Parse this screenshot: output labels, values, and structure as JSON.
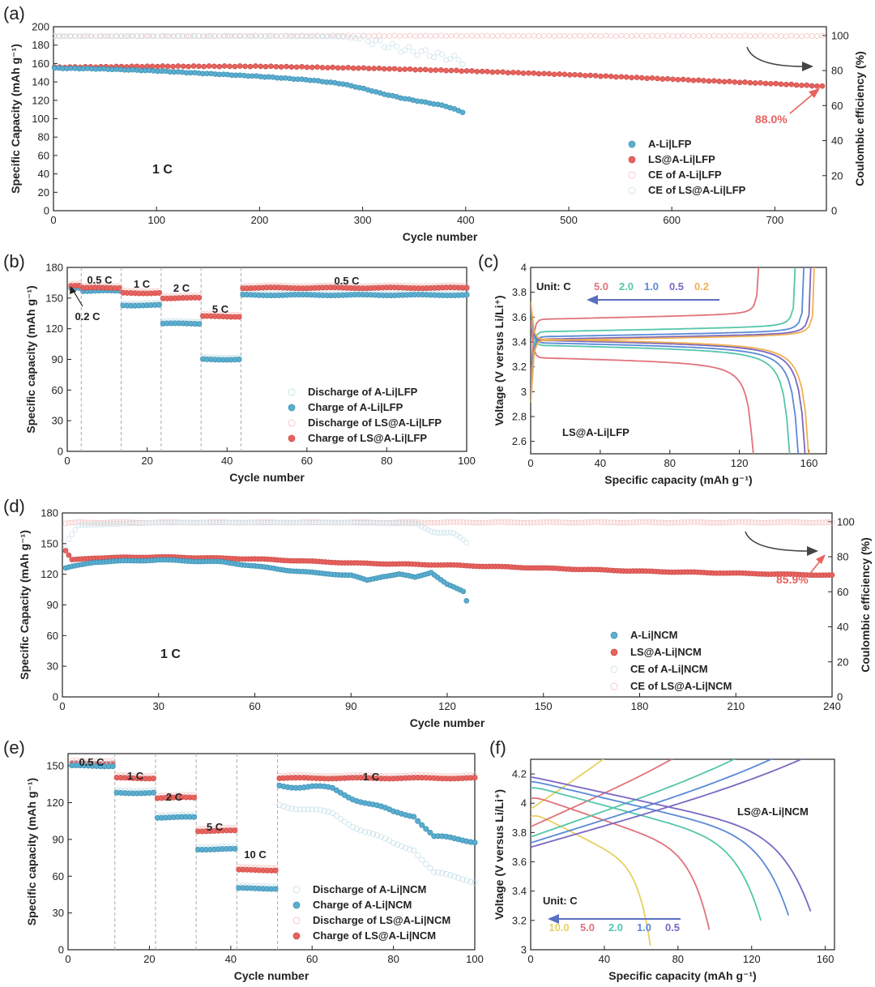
{
  "colors": {
    "blue": "#5aaed0",
    "red": "#e8625e",
    "pink_ce": "#f2b8b4",
    "light_ce": "#c3dde6",
    "dark_arrow": "#444444",
    "c_rate": {
      "5.0": "#e0737b",
      "2.0": "#54c6aa",
      "1.0": "#5a8ad6",
      "0.5": "#7a67c2",
      "0.2": "#f0b050",
      "10.0": "#e8d060"
    }
  },
  "panels": {
    "a": {
      "label": "(a)",
      "inset_text": "1 C",
      "retention_label": "88.0%"
    },
    "b": {
      "label": "(b)"
    },
    "c": {
      "label": "(c)",
      "inset_text": "LS@A-Li|LFP",
      "unit_label": "Unit: C"
    },
    "d": {
      "label": "(d)",
      "inset_text": "1 C",
      "retention_label": "85.9%"
    },
    "e": {
      "label": "(e)"
    },
    "f": {
      "label": "(f)",
      "inset_text": "LS@A-Li|NCM",
      "unit_label": "Unit: C"
    }
  },
  "chart_data": [
    {
      "id": "a",
      "type": "scatter",
      "xlabel": "Cycle number",
      "ylabel": "Specific Capacity (mAh g⁻¹)",
      "y2label": "Coulombic efficiency (%)",
      "xlim": [
        0,
        750
      ],
      "ylim": [
        0,
        200
      ],
      "y2lim": [
        0,
        105
      ],
      "xticks": [
        0,
        100,
        200,
        300,
        400,
        500,
        600,
        700
      ],
      "yticks": [
        0,
        20,
        40,
        60,
        80,
        100,
        120,
        140,
        160,
        180,
        200
      ],
      "y2ticks": [
        0,
        20,
        40,
        60,
        80,
        100
      ],
      "legend": [
        "A-Li|LFP",
        "LS@A-Li|LFP",
        "CE of A-Li|LFP",
        "CE of LS@A-Li|LFP"
      ],
      "legend_position": "lower-right",
      "series": [
        {
          "name": "A-Li|LFP",
          "axis": "left",
          "x": [
            1,
            50,
            100,
            150,
            200,
            250,
            280,
            300,
            320,
            340,
            360,
            380,
            390,
            400
          ],
          "values": [
            155,
            154,
            152,
            149,
            146,
            142,
            138,
            133,
            127,
            122,
            118,
            114,
            110,
            106
          ]
        },
        {
          "name": "LS@A-Li|LFP",
          "axis": "left",
          "x": [
            1,
            100,
            200,
            300,
            400,
            500,
            600,
            700,
            750
          ],
          "values": [
            156,
            157,
            157,
            155,
            152,
            148,
            143,
            138,
            135
          ]
        },
        {
          "name": "CE of A-Li|LFP",
          "axis": "right",
          "x": [
            1,
            100,
            200,
            280,
            300,
            320,
            340,
            360,
            380,
            400
          ],
          "values": [
            99.5,
            99.6,
            99.6,
            99.4,
            98,
            95,
            92,
            90,
            88,
            85
          ]
        },
        {
          "name": "CE of LS@A-Li|LFP",
          "axis": "right",
          "x": [
            1,
            200,
            400,
            600,
            750
          ],
          "values": [
            99.7,
            99.8,
            99.8,
            99.8,
            99.7
          ]
        }
      ]
    },
    {
      "id": "b",
      "type": "scatter",
      "xlabel": "Cycle number",
      "ylabel": "Specific capacity (mAh g⁻¹)",
      "xlim": [
        0,
        100
      ],
      "ylim": [
        0,
        180
      ],
      "xticks": [
        0,
        20,
        40,
        60,
        80,
        100
      ],
      "yticks": [
        0,
        30,
        60,
        90,
        120,
        150,
        180
      ],
      "rate_labels": [
        "0.2 C",
        "0.5 C",
        "1 C",
        "2 C",
        "5 C",
        "0.5 C"
      ],
      "rate_boundaries": [
        3,
        13,
        23,
        33,
        43
      ],
      "legend": [
        "Discharge of A-Li|LFP",
        "Charge of A-Li|LFP",
        "Discharge of LS@A-Li|LFP",
        "Charge of LS@A-Li|LFP"
      ],
      "legend_position": "lower-right",
      "series": [
        {
          "name": "Charge of A-Li|LFP",
          "segments": [
            [
              1,
              3,
              160
            ],
            [
              4,
              13,
              157
            ],
            [
              14,
              23,
              143
            ],
            [
              24,
              33,
              125
            ],
            [
              34,
              43,
              90
            ],
            [
              44,
              100,
              153
            ]
          ]
        },
        {
          "name": "Charge of LS@A-Li|LFP",
          "segments": [
            [
              1,
              3,
              162
            ],
            [
              4,
              13,
              160
            ],
            [
              14,
              23,
              155
            ],
            [
              24,
              33,
              150
            ],
            [
              34,
              43,
              132
            ],
            [
              44,
              100,
              160
            ]
          ]
        }
      ]
    },
    {
      "id": "c",
      "type": "line",
      "xlabel": "Specific capacity (mAh g⁻¹)",
      "ylabel": "Voltage (V versus Li/Li⁺)",
      "xlim": [
        0,
        170
      ],
      "ylim": [
        2.5,
        4.0
      ],
      "xticks": [
        0,
        40,
        80,
        120,
        160
      ],
      "yticks": [
        2.6,
        2.8,
        3.0,
        3.2,
        3.4,
        3.6,
        3.8,
        4.0
      ],
      "rates": [
        "5.0",
        "2.0",
        "1.0",
        "0.5",
        "0.2"
      ],
      "series": [
        {
          "name": "5.0",
          "capacity": 130,
          "charge_plateau": 3.6,
          "discharge_plateau": 3.26
        },
        {
          "name": "2.0",
          "capacity": 151,
          "charge_plateau": 3.5,
          "discharge_plateau": 3.36
        },
        {
          "name": "1.0",
          "capacity": 156,
          "charge_plateau": 3.46,
          "discharge_plateau": 3.38
        },
        {
          "name": "0.5",
          "capacity": 160,
          "charge_plateau": 3.44,
          "discharge_plateau": 3.4
        },
        {
          "name": "0.2",
          "capacity": 162,
          "charge_plateau": 3.43,
          "discharge_plateau": 3.41
        }
      ]
    },
    {
      "id": "d",
      "type": "scatter",
      "xlabel": "Cycle number",
      "ylabel": "Specific Capacity (mAh g⁻¹)",
      "y2label": "Coulombic efficiency (%)",
      "xlim": [
        0,
        240
      ],
      "ylim": [
        0,
        180
      ],
      "y2lim": [
        0,
        105
      ],
      "xticks": [
        0,
        30,
        60,
        90,
        120,
        150,
        180,
        210,
        240
      ],
      "yticks": [
        0,
        30,
        60,
        90,
        120,
        150,
        180
      ],
      "y2ticks": [
        0,
        20,
        40,
        60,
        80,
        100
      ],
      "legend": [
        "A-Li|NCM",
        "LS@A-Li|NCM",
        "CE of A-Li|NCM",
        "CE of LS@A-Li|NCM"
      ],
      "legend_position": "lower-right",
      "series": [
        {
          "name": "A-Li|NCM",
          "axis": "left",
          "x": [
            1,
            10,
            30,
            50,
            60,
            70,
            80,
            90,
            95,
            100,
            105,
            110,
            115,
            120,
            125,
            126
          ],
          "values": [
            126,
            132,
            134,
            132,
            128,
            124,
            121,
            119,
            114,
            118,
            120,
            117,
            122,
            110,
            103,
            94
          ]
        },
        {
          "name": "LS@A-Li|NCM",
          "axis": "left",
          "x": [
            1,
            3,
            10,
            30,
            60,
            90,
            120,
            150,
            180,
            210,
            240
          ],
          "values": [
            143,
            134,
            136,
            137,
            135,
            131,
            129,
            126,
            123,
            121,
            119
          ]
        },
        {
          "name": "CE of A-Li|NCM",
          "axis": "right",
          "x": [
            1,
            2,
            5,
            30,
            60,
            90,
            110,
            115,
            118,
            122,
            126
          ],
          "values": [
            85,
            90,
            98,
            99.5,
            99.5,
            99.5,
            99,
            96,
            94,
            92,
            88
          ]
        },
        {
          "name": "CE of LS@A-Li|NCM",
          "axis": "right",
          "x": [
            1,
            5,
            60,
            120,
            180,
            240
          ],
          "values": [
            99,
            99.6,
            99.6,
            99.6,
            99.6,
            99.6
          ]
        }
      ]
    },
    {
      "id": "e",
      "type": "scatter",
      "xlabel": "Cycle number",
      "ylabel": "Specific capacity (mAh g⁻¹)",
      "xlim": [
        0,
        100
      ],
      "ylim": [
        0,
        160
      ],
      "xticks": [
        0,
        20,
        40,
        60,
        80,
        100
      ],
      "yticks": [
        0,
        30,
        60,
        90,
        120,
        150
      ],
      "rate_labels": [
        "0.5 C",
        "1 C",
        "2 C",
        "5 C",
        "10 C",
        "1 C"
      ],
      "rate_boundaries": [
        11,
        21,
        31,
        41,
        51
      ],
      "legend": [
        "Discharge of A-Li|NCM",
        "Charge of A-Li|NCM",
        "Discharge of LS@A-Li|NCM",
        "Charge of LS@A-Li|NCM"
      ],
      "legend_position": "lower-right",
      "series": [
        {
          "name": "Charge of LS@A-Li|NCM",
          "segments": [
            [
              1,
              11,
              152
            ],
            [
              12,
              21,
              140
            ],
            [
              22,
              31,
              124
            ],
            [
              32,
              41,
              97
            ],
            [
              42,
              51,
              65
            ],
            [
              52,
              100,
              140
            ]
          ]
        },
        {
          "name": "Charge of A-Li|NCM",
          "segments": [
            [
              1,
              11,
              150
            ],
            [
              12,
              21,
              128
            ],
            [
              22,
              31,
              108
            ],
            [
              32,
              41,
              82
            ],
            [
              42,
              51,
              50
            ]
          ],
          "tail_x": [
            52,
            60,
            65,
            70,
            75,
            80,
            85,
            90,
            95,
            100
          ],
          "tail_values": [
            134,
            133,
            131,
            124,
            118,
            112,
            110,
            92,
            90,
            89
          ]
        }
      ]
    },
    {
      "id": "f",
      "type": "line",
      "xlabel": "Specific capacity (mAh g⁻¹)",
      "ylabel": "Voltage (V versus Li/Li⁺)",
      "xlim": [
        0,
        165
      ],
      "ylim": [
        3.0,
        4.3
      ],
      "xticks": [
        0,
        40,
        80,
        120,
        160
      ],
      "yticks": [
        3.0,
        3.2,
        3.4,
        3.6,
        3.8,
        4.0,
        4.2
      ],
      "rates": [
        "10.0",
        "5.0",
        "2.0",
        "1.0",
        "0.5"
      ],
      "series": [
        {
          "name": "10.0",
          "capacity": 65
        },
        {
          "name": "5.0",
          "capacity": 97
        },
        {
          "name": "2.0",
          "capacity": 125
        },
        {
          "name": "1.0",
          "capacity": 140
        },
        {
          "name": "0.5",
          "capacity": 152
        }
      ]
    }
  ]
}
